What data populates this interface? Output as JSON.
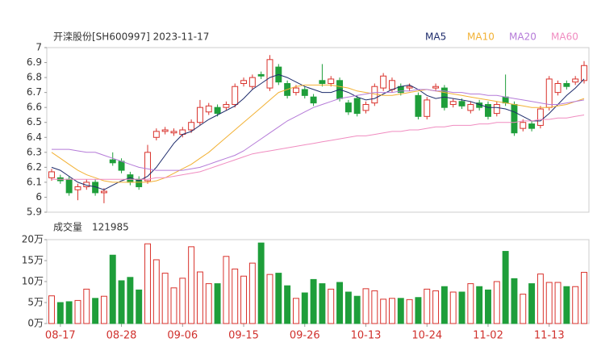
{
  "chart_data": {
    "type": "candlestick",
    "title": "开滦股份[SH600997] 2023-11-17",
    "categories": [
      null,
      "08-17",
      null,
      null,
      null,
      null,
      null,
      null,
      "08-28",
      null,
      null,
      null,
      null,
      null,
      null,
      "09-06",
      null,
      null,
      null,
      null,
      null,
      null,
      "09-15",
      null,
      null,
      null,
      null,
      null,
      null,
      "09-26",
      null,
      null,
      null,
      null,
      null,
      null,
      "10-13",
      null,
      null,
      null,
      null,
      null,
      null,
      "10-24",
      null,
      null,
      null,
      null,
      null,
      null,
      "11-02",
      null,
      null,
      null,
      null,
      null,
      null,
      "11-13",
      null,
      null,
      null,
      null
    ],
    "open": [
      6.13,
      6.13,
      6.12,
      6.05,
      6.07,
      6.1,
      6.03,
      6.25,
      6.24,
      6.15,
      6.12,
      6.11,
      6.4,
      6.44,
      6.43,
      6.42,
      6.45,
      6.5,
      6.57,
      6.6,
      6.6,
      6.62,
      6.76,
      6.74,
      6.82,
      6.73,
      6.87,
      6.76,
      6.7,
      6.72,
      6.67,
      6.78,
      6.76,
      6.78,
      6.63,
      6.66,
      6.58,
      6.63,
      6.73,
      6.72,
      6.74,
      6.73,
      6.68,
      6.54,
      6.73,
      6.73,
      6.62,
      6.64,
      6.58,
      6.63,
      6.62,
      6.56,
      6.67,
      6.62,
      6.46,
      6.49,
      6.48,
      6.6,
      6.7,
      6.76,
      6.77,
      6.78
    ],
    "close": [
      6.17,
      6.11,
      6.03,
      6.07,
      6.1,
      6.03,
      6.04,
      6.23,
      6.18,
      6.1,
      6.07,
      6.3,
      6.44,
      6.45,
      6.44,
      6.45,
      6.5,
      6.6,
      6.61,
      6.56,
      6.62,
      6.74,
      6.78,
      6.8,
      6.81,
      6.92,
      6.77,
      6.68,
      6.73,
      6.68,
      6.63,
      6.76,
      6.79,
      6.66,
      6.57,
      6.56,
      6.62,
      6.74,
      6.81,
      6.78,
      6.7,
      6.74,
      6.54,
      6.65,
      6.74,
      6.6,
      6.64,
      6.61,
      6.62,
      6.6,
      6.54,
      6.62,
      6.63,
      6.43,
      6.5,
      6.46,
      6.59,
      6.79,
      6.76,
      6.74,
      6.79,
      6.88
    ],
    "high": [
      6.19,
      6.15,
      6.14,
      6.09,
      6.12,
      6.12,
      6.06,
      6.3,
      6.26,
      6.17,
      6.14,
      6.35,
      6.46,
      6.47,
      6.46,
      6.47,
      6.52,
      6.65,
      6.63,
      6.62,
      6.64,
      6.76,
      6.8,
      6.82,
      6.84,
      6.95,
      6.89,
      6.78,
      6.75,
      6.74,
      6.69,
      6.89,
      6.81,
      6.8,
      6.65,
      6.68,
      6.64,
      6.76,
      6.83,
      6.8,
      6.76,
      6.76,
      6.7,
      6.67,
      6.76,
      6.75,
      6.66,
      6.66,
      6.64,
      6.65,
      6.64,
      6.64,
      6.82,
      6.64,
      6.52,
      6.51,
      6.61,
      6.81,
      6.78,
      6.78,
      6.81,
      6.91
    ],
    "low": [
      6.11,
      6.09,
      6.01,
      5.98,
      6.05,
      6.01,
      5.96,
      6.21,
      6.16,
      6.08,
      6.05,
      6.09,
      6.38,
      6.42,
      6.41,
      6.4,
      6.43,
      6.48,
      6.55,
      6.54,
      6.58,
      6.6,
      6.74,
      6.72,
      6.79,
      6.71,
      6.75,
      6.66,
      6.68,
      6.66,
      6.61,
      6.74,
      6.74,
      6.64,
      6.55,
      6.54,
      6.56,
      6.61,
      6.71,
      6.7,
      6.68,
      6.71,
      6.52,
      6.52,
      6.71,
      6.58,
      6.6,
      6.59,
      6.56,
      6.58,
      6.52,
      6.54,
      6.61,
      6.41,
      6.44,
      6.44,
      6.46,
      6.58,
      6.68,
      6.72,
      6.75,
      6.76
    ],
    "up_color": "#d9322c",
    "down_color": "#1e9e3a",
    "series": [
      {
        "name": "MA5",
        "color": "#1d2b6b",
        "values": [
          6.2,
          6.18,
          6.14,
          6.1,
          6.08,
          6.07,
          6.05,
          6.08,
          6.11,
          6.13,
          6.11,
          6.14,
          6.2,
          6.28,
          6.36,
          6.42,
          6.44,
          6.48,
          6.52,
          6.55,
          6.58,
          6.61,
          6.66,
          6.72,
          6.76,
          6.8,
          6.82,
          6.8,
          6.77,
          6.74,
          6.72,
          6.7,
          6.7,
          6.72,
          6.7,
          6.67,
          6.65,
          6.66,
          6.69,
          6.72,
          6.74,
          6.75,
          6.72,
          6.68,
          6.66,
          6.67,
          6.66,
          6.65,
          6.64,
          6.62,
          6.6,
          6.6,
          6.59,
          6.57,
          6.54,
          6.51,
          6.51,
          6.56,
          6.62,
          6.68,
          6.73,
          6.79
        ]
      },
      {
        "name": "MA10",
        "color": "#f2b134",
        "values": [
          6.3,
          6.26,
          6.22,
          6.18,
          6.15,
          6.13,
          6.11,
          6.1,
          6.1,
          6.1,
          6.1,
          6.1,
          6.11,
          6.13,
          6.16,
          6.19,
          6.22,
          6.26,
          6.3,
          6.35,
          6.4,
          6.45,
          6.5,
          6.55,
          6.6,
          6.65,
          6.7,
          6.72,
          6.74,
          6.75,
          6.75,
          6.75,
          6.75,
          6.74,
          6.73,
          6.71,
          6.7,
          6.69,
          6.68,
          6.68,
          6.69,
          6.7,
          6.71,
          6.72,
          6.71,
          6.7,
          6.69,
          6.68,
          6.67,
          6.66,
          6.65,
          6.64,
          6.63,
          6.62,
          6.61,
          6.6,
          6.6,
          6.6,
          6.61,
          6.62,
          6.64,
          6.66
        ]
      },
      {
        "name": "MA20",
        "color": "#b57bd8",
        "values": [
          6.32,
          6.32,
          6.32,
          6.31,
          6.3,
          6.3,
          6.28,
          6.26,
          6.24,
          6.22,
          6.2,
          6.19,
          6.18,
          6.18,
          6.18,
          6.18,
          6.19,
          6.2,
          6.22,
          6.24,
          6.26,
          6.28,
          6.31,
          6.35,
          6.39,
          6.43,
          6.47,
          6.51,
          6.54,
          6.57,
          6.6,
          6.62,
          6.64,
          6.66,
          6.67,
          6.68,
          6.69,
          6.7,
          6.7,
          6.7,
          6.71,
          6.71,
          6.72,
          6.72,
          6.71,
          6.71,
          6.7,
          6.7,
          6.69,
          6.69,
          6.68,
          6.68,
          6.67,
          6.66,
          6.65,
          6.64,
          6.63,
          6.62,
          6.62,
          6.63,
          6.64,
          6.65
        ]
      },
      {
        "name": "MA60",
        "color": "#f08cc0",
        "values": [
          6.12,
          6.12,
          6.12,
          6.12,
          6.12,
          6.12,
          6.12,
          6.12,
          6.12,
          6.12,
          6.12,
          6.12,
          6.13,
          6.13,
          6.14,
          6.15,
          6.16,
          6.17,
          6.19,
          6.21,
          6.23,
          6.25,
          6.27,
          6.29,
          6.3,
          6.31,
          6.32,
          6.33,
          6.34,
          6.35,
          6.36,
          6.37,
          6.38,
          6.39,
          6.4,
          6.41,
          6.41,
          6.42,
          6.43,
          6.44,
          6.44,
          6.45,
          6.45,
          6.46,
          6.47,
          6.47,
          6.48,
          6.48,
          6.48,
          6.49,
          6.49,
          6.5,
          6.5,
          6.5,
          6.51,
          6.51,
          6.52,
          6.52,
          6.53,
          6.53,
          6.54,
          6.55
        ]
      }
    ],
    "ylim": [
      5.9,
      7
    ],
    "yticks": [
      5.9,
      6,
      6.1,
      6.2,
      6.3,
      6.4,
      6.5,
      6.6,
      6.7,
      6.8,
      6.9,
      7
    ],
    "volume": {
      "label": "成交量",
      "latest": 121985,
      "values": [
        6.6,
        5.0,
        5.2,
        5.5,
        8.2,
        6.0,
        6.5,
        16.3,
        10.2,
        11.0,
        8.0,
        19.0,
        15.2,
        12.0,
        8.5,
        10.8,
        18.3,
        12.3,
        9.5,
        9.5,
        16.0,
        13.0,
        11.3,
        14.4,
        19.2,
        11.7,
        12.0,
        9.0,
        6.0,
        7.3,
        10.5,
        9.5,
        8.2,
        9.8,
        7.5,
        6.5,
        8.3,
        7.8,
        5.8,
        6.0,
        6.0,
        5.7,
        6.2,
        8.2,
        7.8,
        8.8,
        7.5,
        7.5,
        9.5,
        8.8,
        8.0,
        10.0,
        17.2,
        10.7,
        7.0,
        9.5,
        11.8,
        9.8,
        9.8,
        8.8,
        8.8,
        12.2
      ],
      "ylim": [
        0,
        20
      ],
      "yticks": [
        {
          "value": 0,
          "label": "0万"
        },
        {
          "value": 5,
          "label": "5万"
        },
        {
          "value": 10,
          "label": "10万"
        },
        {
          "value": 15,
          "label": "15万"
        },
        {
          "value": 20,
          "label": "20万"
        }
      ]
    }
  }
}
